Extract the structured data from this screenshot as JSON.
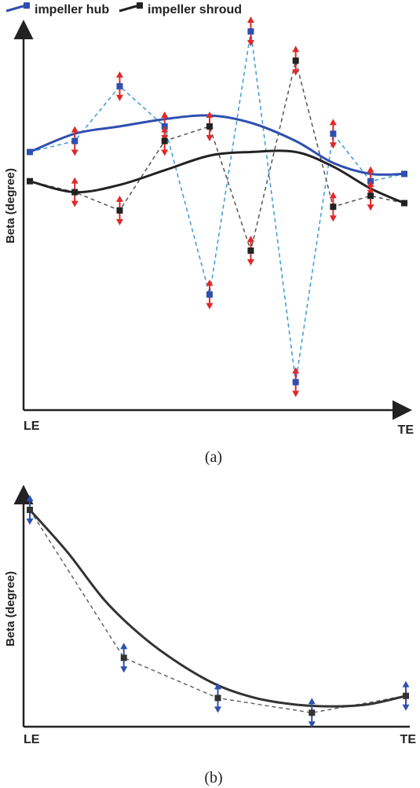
{
  "chart_data": [
    {
      "type": "line",
      "panel_label": "(a)",
      "ylabel": "Beta (degree)",
      "x_start_label": "LE",
      "x_end_label": "TE",
      "legend": [
        "impeller hub",
        "impeller shroud"
      ],
      "legend_placement": "top-left",
      "series": [
        {
          "name": "impeller hub",
          "role": "control-points",
          "x": [
            0,
            0.12,
            0.24,
            0.36,
            0.48,
            0.59,
            0.71,
            0.81,
            0.91,
            1.0
          ],
          "y": [
            0.67,
            0.7,
            0.85,
            0.74,
            0.28,
            1.0,
            0.04,
            0.72,
            0.59,
            0.61
          ]
        },
        {
          "name": "impeller shroud",
          "role": "control-points",
          "x": [
            0,
            0.12,
            0.24,
            0.36,
            0.48,
            0.59,
            0.71,
            0.81,
            0.91,
            1.0
          ],
          "y": [
            0.59,
            0.56,
            0.51,
            0.7,
            0.74,
            0.4,
            0.92,
            0.52,
            0.55,
            0.53
          ]
        },
        {
          "name": "impeller hub",
          "role": "fitted-curve",
          "x": [
            0,
            0.12,
            0.24,
            0.36,
            0.48,
            0.59,
            0.71,
            0.81,
            0.91,
            1.0
          ],
          "y": [
            0.67,
            0.72,
            0.74,
            0.76,
            0.77,
            0.75,
            0.7,
            0.64,
            0.61,
            0.61
          ]
        },
        {
          "name": "impeller shroud",
          "role": "fitted-curve",
          "x": [
            0,
            0.12,
            0.24,
            0.36,
            0.48,
            0.59,
            0.71,
            0.81,
            0.91,
            1.0
          ],
          "y": [
            0.59,
            0.56,
            0.58,
            0.62,
            0.66,
            0.67,
            0.67,
            0.63,
            0.57,
            0.53
          ]
        }
      ],
      "color_hub": "#2f4fb0",
      "color_shroud": "#222222",
      "color_hub_dashed": "#3a9ad9",
      "color_shroud_dashed": "#555555",
      "color_arrow": "#e0282a"
    },
    {
      "type": "line",
      "panel_label": "(b)",
      "ylabel": "Beta (degree)",
      "x_start_label": "LE",
      "x_end_label": "TE",
      "series": [
        {
          "role": "control-points",
          "x": [
            0,
            0.25,
            0.5,
            0.75,
            1.0
          ],
          "y": [
            1.0,
            0.3,
            0.11,
            0.04,
            0.12
          ]
        },
        {
          "role": "fitted-curve",
          "x": [
            0,
            0.1,
            0.2,
            0.3,
            0.4,
            0.5,
            0.6,
            0.7,
            0.8,
            0.9,
            1.0
          ],
          "y": [
            1.0,
            0.8,
            0.57,
            0.4,
            0.27,
            0.17,
            0.11,
            0.08,
            0.07,
            0.08,
            0.12
          ]
        }
      ],
      "color_curve": "#333333",
      "color_dashed": "#666666",
      "color_marker": "#333333",
      "color_arrow": "#2f4fb0"
    }
  ]
}
